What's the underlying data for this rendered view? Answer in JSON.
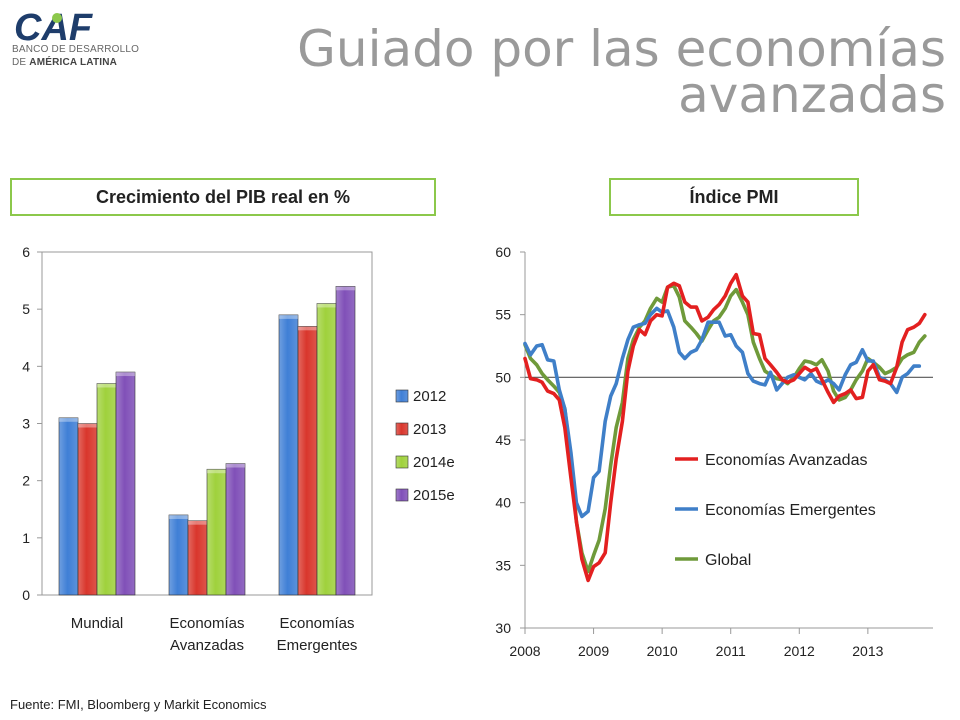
{
  "brand": {
    "logo_text": "CAF",
    "line1": "BANCO DE DESARROLLO",
    "line2_prefix": "DE ",
    "line2_bold": "AMÉRICA LATINA"
  },
  "title_line1": "Guiado por las economías",
  "title_line2": "avanzadas",
  "source": "Fuente: FMI, Bloomberg y Markit Economics",
  "colors": {
    "accent_border": "#8cc84b",
    "s2012": "#3f7fd6",
    "s2013": "#d9362c",
    "s2014": "#9fd13c",
    "s2015": "#8050b8",
    "line_adv": "#e32020",
    "line_emg": "#3f7fc8",
    "line_glb": "#6f9a3a"
  },
  "chart_data": [
    {
      "type": "bar",
      "title": "Crecimiento del PIB real en %",
      "categories": [
        [
          "Mundial"
        ],
        [
          "Economías",
          "Avanzadas"
        ],
        [
          "Economías",
          "Emergentes"
        ]
      ],
      "ylim": [
        0,
        6
      ],
      "yticks": [
        "0",
        "1",
        "2",
        "3",
        "4",
        "5",
        "6"
      ],
      "series": [
        {
          "name": "2012",
          "values": [
            3.1,
            1.4,
            4.9
          ]
        },
        {
          "name": "2013",
          "values": [
            3.0,
            1.3,
            4.7
          ]
        },
        {
          "name": "2014e",
          "values": [
            3.7,
            2.2,
            5.1
          ]
        },
        {
          "name": "2015e",
          "values": [
            3.9,
            2.3,
            5.4
          ]
        }
      ],
      "legend": "right"
    },
    {
      "type": "line",
      "title": "Índice PMI",
      "ylim": [
        30,
        60
      ],
      "yticks": [
        "30",
        "35",
        "40",
        "45",
        "50",
        "55",
        "60"
      ],
      "xlim": [
        2008,
        2013.95
      ],
      "xticks": [
        "2008",
        "2009",
        "2010",
        "2011",
        "2012",
        "2013"
      ],
      "reference_line": 50,
      "series": [
        {
          "name": "Economías Avanzadas",
          "points": [
            [
              2008.0,
              51.5
            ],
            [
              2008.08,
              49.9
            ],
            [
              2008.17,
              49.8
            ],
            [
              2008.25,
              49.6
            ],
            [
              2008.33,
              48.9
            ],
            [
              2008.42,
              48.7
            ],
            [
              2008.5,
              48.2
            ],
            [
              2008.58,
              46.0
            ],
            [
              2008.67,
              42.0
            ],
            [
              2008.75,
              38.5
            ],
            [
              2008.83,
              35.5
            ],
            [
              2008.92,
              33.8
            ],
            [
              2009.0,
              34.9
            ],
            [
              2009.08,
              35.2
            ],
            [
              2009.17,
              36.0
            ],
            [
              2009.25,
              40.0
            ],
            [
              2009.33,
              43.5
            ],
            [
              2009.42,
              46.5
            ],
            [
              2009.5,
              50.5
            ],
            [
              2009.58,
              52.5
            ],
            [
              2009.67,
              53.8
            ],
            [
              2009.75,
              53.4
            ],
            [
              2009.83,
              54.5
            ],
            [
              2009.92,
              55.0
            ],
            [
              2010.0,
              54.9
            ],
            [
              2010.08,
              57.2
            ],
            [
              2010.17,
              57.5
            ],
            [
              2010.25,
              57.3
            ],
            [
              2010.33,
              56.0
            ],
            [
              2010.42,
              55.6
            ],
            [
              2010.5,
              55.6
            ],
            [
              2010.58,
              54.5
            ],
            [
              2010.67,
              54.8
            ],
            [
              2010.75,
              55.4
            ],
            [
              2010.83,
              55.8
            ],
            [
              2010.92,
              56.5
            ],
            [
              2011.0,
              57.5
            ],
            [
              2011.08,
              58.2
            ],
            [
              2011.17,
              56.5
            ],
            [
              2011.25,
              56.0
            ],
            [
              2011.33,
              53.5
            ],
            [
              2011.42,
              53.4
            ],
            [
              2011.5,
              51.5
            ],
            [
              2011.58,
              51.0
            ],
            [
              2011.67,
              50.4
            ],
            [
              2011.75,
              49.8
            ],
            [
              2011.83,
              49.6
            ],
            [
              2011.92,
              49.8
            ],
            [
              2012.0,
              50.3
            ],
            [
              2012.08,
              50.8
            ],
            [
              2012.17,
              50.5
            ],
            [
              2012.25,
              50.7
            ],
            [
              2012.33,
              49.8
            ],
            [
              2012.42,
              48.8
            ],
            [
              2012.5,
              48.0
            ],
            [
              2012.58,
              48.5
            ],
            [
              2012.67,
              48.7
            ],
            [
              2012.75,
              49.0
            ],
            [
              2012.83,
              48.3
            ],
            [
              2012.92,
              48.4
            ],
            [
              2013.0,
              50.5
            ],
            [
              2013.08,
              51.0
            ],
            [
              2013.17,
              49.8
            ],
            [
              2013.25,
              49.7
            ],
            [
              2013.33,
              49.5
            ],
            [
              2013.42,
              50.8
            ],
            [
              2013.5,
              52.8
            ],
            [
              2013.58,
              53.8
            ],
            [
              2013.67,
              54.0
            ],
            [
              2013.75,
              54.3
            ],
            [
              2013.83,
              55.0
            ]
          ]
        },
        {
          "name": "Economías Emergentes",
          "points": [
            [
              2008.0,
              52.7
            ],
            [
              2008.08,
              51.8
            ],
            [
              2008.17,
              52.5
            ],
            [
              2008.25,
              52.6
            ],
            [
              2008.33,
              51.4
            ],
            [
              2008.42,
              51.3
            ],
            [
              2008.5,
              49.0
            ],
            [
              2008.58,
              47.5
            ],
            [
              2008.67,
              44.0
            ],
            [
              2008.75,
              40.0
            ],
            [
              2008.83,
              38.9
            ],
            [
              2008.92,
              39.3
            ],
            [
              2009.0,
              42.0
            ],
            [
              2009.08,
              42.5
            ],
            [
              2009.17,
              46.5
            ],
            [
              2009.25,
              48.5
            ],
            [
              2009.33,
              49.5
            ],
            [
              2009.42,
              51.5
            ],
            [
              2009.5,
              53.0
            ],
            [
              2009.58,
              54.0
            ],
            [
              2009.67,
              54.2
            ],
            [
              2009.75,
              54.3
            ],
            [
              2009.83,
              55.0
            ],
            [
              2009.92,
              55.5
            ],
            [
              2010.0,
              55.2
            ],
            [
              2010.08,
              55.3
            ],
            [
              2010.17,
              54.0
            ],
            [
              2010.25,
              52.0
            ],
            [
              2010.33,
              51.5
            ],
            [
              2010.42,
              52.0
            ],
            [
              2010.5,
              52.2
            ],
            [
              2010.58,
              53.0
            ],
            [
              2010.67,
              54.4
            ],
            [
              2010.75,
              54.4
            ],
            [
              2010.83,
              54.4
            ],
            [
              2010.92,
              53.3
            ],
            [
              2011.0,
              53.4
            ],
            [
              2011.08,
              52.5
            ],
            [
              2011.17,
              52.0
            ],
            [
              2011.25,
              50.3
            ],
            [
              2011.33,
              49.7
            ],
            [
              2011.42,
              49.5
            ],
            [
              2011.5,
              49.4
            ],
            [
              2011.58,
              50.4
            ],
            [
              2011.67,
              49.0
            ],
            [
              2011.75,
              49.5
            ],
            [
              2011.83,
              50.0
            ],
            [
              2011.92,
              50.2
            ],
            [
              2012.0,
              50.0
            ],
            [
              2012.08,
              49.8
            ],
            [
              2012.17,
              50.3
            ],
            [
              2012.25,
              49.7
            ],
            [
              2012.33,
              49.5
            ],
            [
              2012.42,
              49.8
            ],
            [
              2012.5,
              49.5
            ],
            [
              2012.58,
              49.0
            ],
            [
              2012.67,
              50.2
            ],
            [
              2012.75,
              51.0
            ],
            [
              2012.83,
              51.2
            ],
            [
              2012.92,
              52.2
            ],
            [
              2013.0,
              51.3
            ],
            [
              2013.08,
              51.3
            ],
            [
              2013.17,
              50.0
            ],
            [
              2013.25,
              49.8
            ],
            [
              2013.33,
              49.5
            ],
            [
              2013.42,
              48.8
            ],
            [
              2013.5,
              50.0
            ],
            [
              2013.58,
              50.3
            ],
            [
              2013.67,
              50.9
            ],
            [
              2013.75,
              50.9
            ]
          ]
        },
        {
          "name": "Global",
          "points": [
            [
              2008.0,
              52.6
            ],
            [
              2008.08,
              51.5
            ],
            [
              2008.17,
              51.0
            ],
            [
              2008.25,
              50.3
            ],
            [
              2008.33,
              49.8
            ],
            [
              2008.42,
              49.3
            ],
            [
              2008.5,
              48.8
            ],
            [
              2008.58,
              47.5
            ],
            [
              2008.67,
              43.5
            ],
            [
              2008.75,
              38.5
            ],
            [
              2008.83,
              36.0
            ],
            [
              2008.92,
              34.5
            ],
            [
              2009.0,
              35.8
            ],
            [
              2009.08,
              37.0
            ],
            [
              2009.17,
              39.5
            ],
            [
              2009.25,
              43.0
            ],
            [
              2009.33,
              46.0
            ],
            [
              2009.42,
              48.0
            ],
            [
              2009.5,
              51.5
            ],
            [
              2009.58,
              53.0
            ],
            [
              2009.67,
              54.0
            ],
            [
              2009.75,
              54.5
            ],
            [
              2009.83,
              55.5
            ],
            [
              2009.92,
              56.3
            ],
            [
              2010.0,
              56.0
            ],
            [
              2010.08,
              57.2
            ],
            [
              2010.17,
              57.3
            ],
            [
              2010.25,
              56.4
            ],
            [
              2010.33,
              54.5
            ],
            [
              2010.42,
              54.0
            ],
            [
              2010.5,
              53.5
            ],
            [
              2010.58,
              52.9
            ],
            [
              2010.67,
              53.8
            ],
            [
              2010.75,
              54.5
            ],
            [
              2010.83,
              54.8
            ],
            [
              2010.92,
              55.5
            ],
            [
              2011.0,
              56.5
            ],
            [
              2011.08,
              57.0
            ],
            [
              2011.17,
              56.0
            ],
            [
              2011.25,
              55.0
            ],
            [
              2011.33,
              52.8
            ],
            [
              2011.42,
              51.5
            ],
            [
              2011.5,
              50.5
            ],
            [
              2011.58,
              50.2
            ],
            [
              2011.67,
              49.9
            ],
            [
              2011.75,
              49.8
            ],
            [
              2011.83,
              49.5
            ],
            [
              2011.92,
              50.0
            ],
            [
              2012.0,
              50.7
            ],
            [
              2012.08,
              51.3
            ],
            [
              2012.17,
              51.2
            ],
            [
              2012.25,
              51.0
            ],
            [
              2012.33,
              51.4
            ],
            [
              2012.42,
              50.5
            ],
            [
              2012.5,
              48.9
            ],
            [
              2012.58,
              48.2
            ],
            [
              2012.67,
              48.4
            ],
            [
              2012.75,
              49.0
            ],
            [
              2012.83,
              49.8
            ],
            [
              2012.92,
              50.5
            ],
            [
              2013.0,
              51.5
            ],
            [
              2013.08,
              51.2
            ],
            [
              2013.17,
              50.8
            ],
            [
              2013.25,
              50.3
            ],
            [
              2013.33,
              50.5
            ],
            [
              2013.42,
              50.8
            ],
            [
              2013.5,
              51.5
            ],
            [
              2013.58,
              51.8
            ],
            [
              2013.67,
              52.0
            ],
            [
              2013.75,
              52.8
            ],
            [
              2013.83,
              53.3
            ]
          ]
        }
      ],
      "legend": "center-right"
    }
  ]
}
